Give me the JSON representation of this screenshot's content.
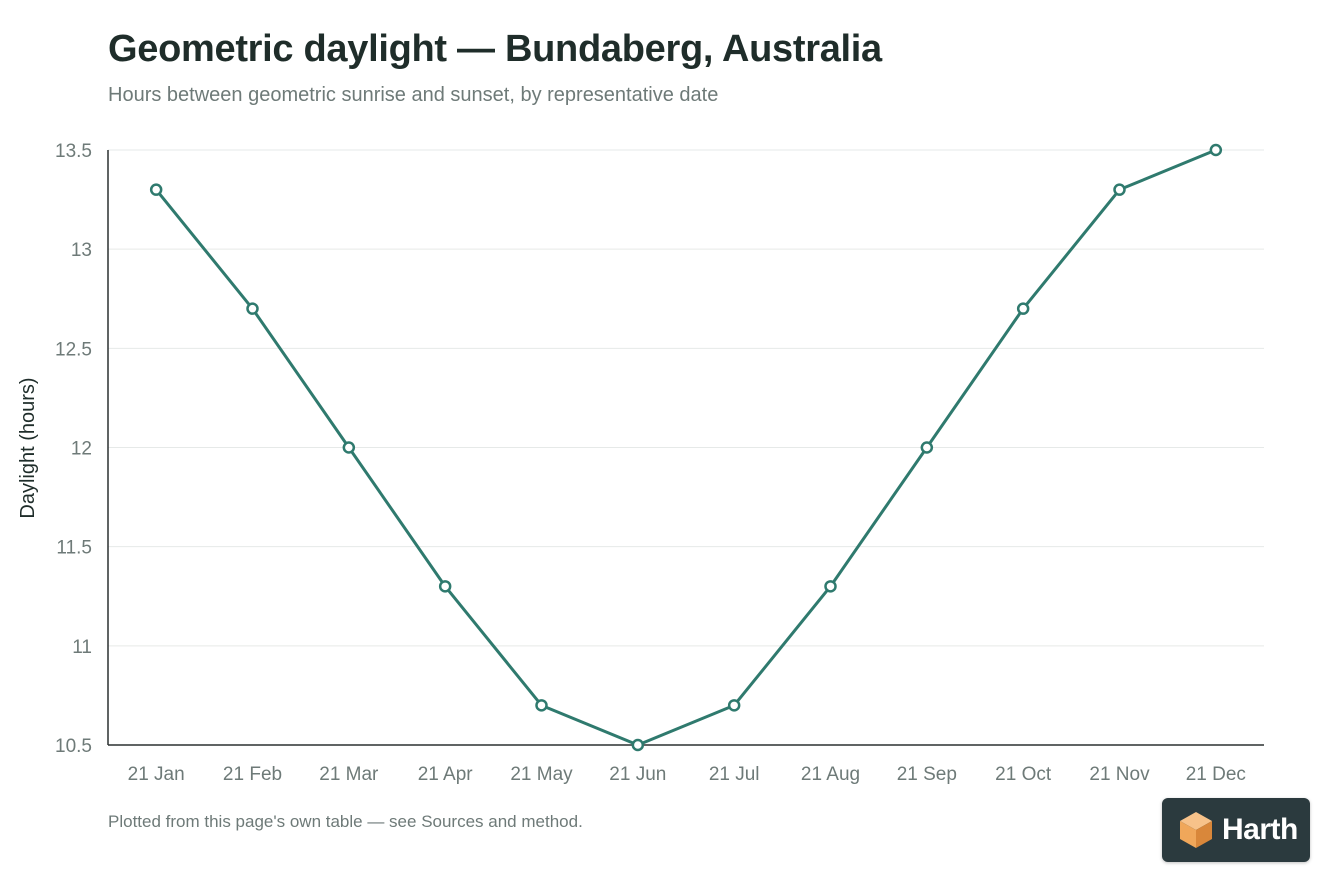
{
  "header": {
    "title": "Geometric daylight — Bundaberg, Australia",
    "subtitle": "Hours between geometric sunrise and sunset, by representative date"
  },
  "footnote": "Plotted from this page's own table — see Sources and method.",
  "logo": {
    "text": "Harth",
    "icon": "cube-icon"
  },
  "colors": {
    "line": "#2f7a6e",
    "title": "#1f2d2a",
    "muted": "#6e7a78",
    "grid": "#e6e9e8",
    "axis": "#2b3030",
    "logo_background": "#2b3a3e",
    "logo_mark": "#f0a75a"
  },
  "chart_data": {
    "type": "line",
    "categories": [
      "21 Jan",
      "21 Feb",
      "21 Mar",
      "21 Apr",
      "21 May",
      "21 Jun",
      "21 Jul",
      "21 Aug",
      "21 Sep",
      "21 Oct",
      "21 Nov",
      "21 Dec"
    ],
    "series": [
      {
        "values": [
          13.3,
          12.7,
          12.0,
          11.3,
          10.7,
          10.5,
          10.7,
          11.3,
          12.0,
          12.7,
          13.3,
          13.5
        ]
      }
    ],
    "ylabel": "Daylight (hours)",
    "xlabel": "",
    "ylim": [
      10.5,
      13.5
    ],
    "yticks": [
      10.5,
      11,
      11.5,
      12,
      12.5,
      13,
      13.5
    ],
    "ytick_labels": [
      "10.5",
      "11",
      "11.5",
      "12",
      "12.5",
      "13",
      "13.5"
    ],
    "grid": true,
    "markers": "open-circle",
    "legend": "none"
  }
}
